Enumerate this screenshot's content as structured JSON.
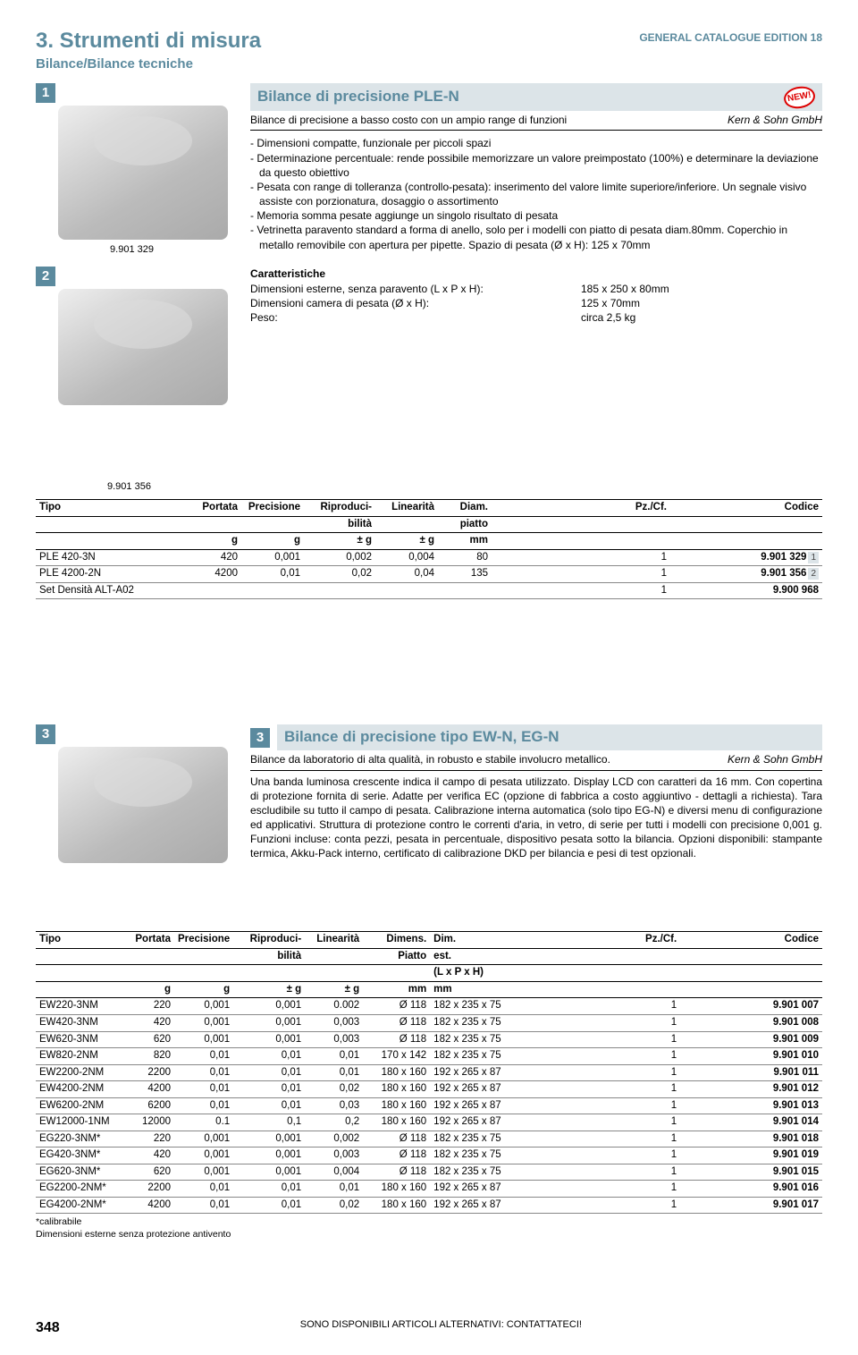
{
  "header": {
    "chapter": "3. Strumenti di misura",
    "subtitle": "Bilance/Bilance tecniche",
    "edition": "GENERAL CATALOGUE EDITION 18"
  },
  "section1": {
    "badge1": "1",
    "badge2": "2",
    "title": "Bilance di precisione PLE-N",
    "newBadge": "NEW!",
    "subLeft": "Bilance di precisione a basso costo con un ampio range di funzioni",
    "subRight": "Kern & Sohn GmbH",
    "bullets": [
      "- Dimensioni compatte, funzionale per piccoli spazi",
      "- Determinazione percentuale: rende possibile memorizzare un valore preimpostato (100%) e determinare la deviazione da questo obiettivo",
      "- Pesata con range di tolleranza (controllo-pesata): inserimento del valore limite superiore/inferiore. Un segnale visivo assiste con porzionatura, dosaggio o assortimento",
      "- Memoria somma pesate aggiunge un singolo risultato di pesata",
      "- Vetrinetta paravento standard a forma di anello, solo per i modelli con piatto di pesata diam.80mm. Coperchio in metallo removibile con apertura per pipette. Spazio di pesata (Ø x H): 125 x 70mm"
    ],
    "caption1": "9.901 329",
    "caption2": "9.901 356",
    "charsTitle": "Caratteristiche",
    "chars": [
      {
        "l": "Dimensioni esterne, senza paravento (L x P x H):",
        "v": "185 x 250 x 80mm"
      },
      {
        "l": "Dimensioni camera di pesata (Ø x H):",
        "v": "125 x 70mm"
      },
      {
        "l": "Peso:",
        "v": "circa 2,5 kg"
      }
    ]
  },
  "table1": {
    "head": {
      "tipo": "Tipo",
      "portata": "Portata",
      "prec": "Precisione",
      "ripro1": "Riproduci-",
      "ripro2": "bilità",
      "lin": "Linearità",
      "diam1": "Diam.",
      "diam2": "piatto",
      "pz": "Pz./Cf.",
      "cod": "Codice",
      "ug": "g",
      "upm": "± g",
      "umm": "mm"
    },
    "rows": [
      {
        "tipo": "PLE 420-3N",
        "portata": "420",
        "prec": "0,001",
        "ripro": "0,002",
        "lin": "0,004",
        "diam": "80",
        "pz": "1",
        "cod": "9.901 329",
        "ref": "1"
      },
      {
        "tipo": "PLE 4200-2N",
        "portata": "4200",
        "prec": "0,01",
        "ripro": "0,02",
        "lin": "0,04",
        "diam": "135",
        "pz": "1",
        "cod": "9.901 356",
        "ref": "2"
      },
      {
        "tipo": "Set Densità ALT-A02",
        "portata": "",
        "prec": "",
        "ripro": "",
        "lin": "",
        "diam": "",
        "pz": "1",
        "cod": "9.900 968",
        "ref": ""
      }
    ]
  },
  "section3": {
    "badgeLeft": "3",
    "badgeIn": "3",
    "title": "Bilance di precisione tipo EW-N, EG-N",
    "descLeft": "Bilance da laboratorio di alta qualità, in robusto e stabile involucro metallico.",
    "descRight": "Kern & Sohn GmbH",
    "body": "Una banda luminosa crescente indica il campo di pesata utilizzato. Display LCD con caratteri da 16 mm. Con copertina di protezione fornita di serie. Adatte per verifica EC (opzione di fabbrica a costo aggiuntivo - dettagli a richiesta). Tara escludibile su tutto il campo di pesata. Calibrazione interna automatica (solo tipo EG-N) e diversi menu di configurazione ed applicativi. Struttura di protezione contro le correnti d'aria, in vetro, di serie per tutti i modelli con precisione 0,001 g. Funzioni incluse: conta pezzi, pesata in percentuale, dispositivo pesata sotto la bilancia. Opzioni disponibili: stampante termica, Akku-Pack interno, certificato di calibrazione DKD per bilancia e pesi di test opzionali."
  },
  "table2": {
    "head": {
      "tipo": "Tipo",
      "portata": "Portata",
      "prec": "Precisione",
      "ripro1": "Riproduci-",
      "ripro2": "bilità",
      "lin": "Linearità",
      "dp1": "Dimens.",
      "dp2": "Piatto",
      "de1": "Dim.",
      "de2": "est.",
      "de3": "(L x P x H)",
      "pz": "Pz./Cf.",
      "cod": "Codice",
      "ug": "g",
      "upm": "± g",
      "umm": "mm"
    },
    "rows": [
      {
        "t": "EW220-3NM",
        "p": "220",
        "pr": "0,001",
        "ri": "0,001",
        "li": "0.002",
        "dp": "Ø 118",
        "de": "182 x 235 x 75",
        "pz": "1",
        "c": "9.901 007"
      },
      {
        "t": "EW420-3NM",
        "p": "420",
        "pr": "0,001",
        "ri": "0,001",
        "li": "0,003",
        "dp": "Ø 118",
        "de": "182 x 235 x 75",
        "pz": "1",
        "c": "9.901 008"
      },
      {
        "t": "EW620-3NM",
        "p": "620",
        "pr": "0,001",
        "ri": "0,001",
        "li": "0,003",
        "dp": "Ø 118",
        "de": "182 x 235 x 75",
        "pz": "1",
        "c": "9.901 009"
      },
      {
        "t": "EW820-2NM",
        "p": "820",
        "pr": "0,01",
        "ri": "0,01",
        "li": "0,01",
        "dp": "170 x 142",
        "de": "182 x 235 x 75",
        "pz": "1",
        "c": "9.901 010"
      },
      {
        "t": "EW2200-2NM",
        "p": "2200",
        "pr": "0,01",
        "ri": "0,01",
        "li": "0,01",
        "dp": "180 x 160",
        "de": "192 x 265 x 87",
        "pz": "1",
        "c": "9.901 011"
      },
      {
        "t": "EW4200-2NM",
        "p": "4200",
        "pr": "0,01",
        "ri": "0,01",
        "li": "0,02",
        "dp": "180 x 160",
        "de": "192 x 265 x 87",
        "pz": "1",
        "c": "9.901 012"
      },
      {
        "t": "EW6200-2NM",
        "p": "6200",
        "pr": "0,01",
        "ri": "0,01",
        "li": "0,03",
        "dp": "180 x 160",
        "de": "192 x 265 x 87",
        "pz": "1",
        "c": "9.901 013"
      },
      {
        "t": "EW12000-1NM",
        "p": "12000",
        "pr": "0.1",
        "ri": "0,1",
        "li": "0,2",
        "dp": "180 x 160",
        "de": "192 x 265 x 87",
        "pz": "1",
        "c": "9.901 014"
      },
      {
        "t": "EG220-3NM*",
        "p": "220",
        "pr": "0,001",
        "ri": "0,001",
        "li": "0,002",
        "dp": "Ø 118",
        "de": "182 x 235 x 75",
        "pz": "1",
        "c": "9.901 018"
      },
      {
        "t": "EG420-3NM*",
        "p": "420",
        "pr": "0,001",
        "ri": "0,001",
        "li": "0,003",
        "dp": "Ø 118",
        "de": "182 x 235 x 75",
        "pz": "1",
        "c": "9.901 019"
      },
      {
        "t": "EG620-3NM*",
        "p": "620",
        "pr": "0,001",
        "ri": "0,001",
        "li": "0,004",
        "dp": "Ø 118",
        "de": "182 x 235 x 75",
        "pz": "1",
        "c": "9.901 015"
      },
      {
        "t": "EG2200-2NM*",
        "p": "2200",
        "pr": "0,01",
        "ri": "0,01",
        "li": "0,01",
        "dp": "180 x 160",
        "de": "192 x 265 x 87",
        "pz": "1",
        "c": "9.901 016"
      },
      {
        "t": "EG4200-2NM*",
        "p": "4200",
        "pr": "0,01",
        "ri": "0,01",
        "li": "0,02",
        "dp": "180 x 160",
        "de": "192 x 265 x 87",
        "pz": "1",
        "c": "9.901 017"
      }
    ],
    "foot1": "*calibrabile",
    "foot2": "Dimensioni esterne senza protezione antivento"
  },
  "footer": {
    "page": "348",
    "text": "SONO DISPONIBILI ARTICOLI ALTERNATIVI: CONTATTATECI!"
  }
}
